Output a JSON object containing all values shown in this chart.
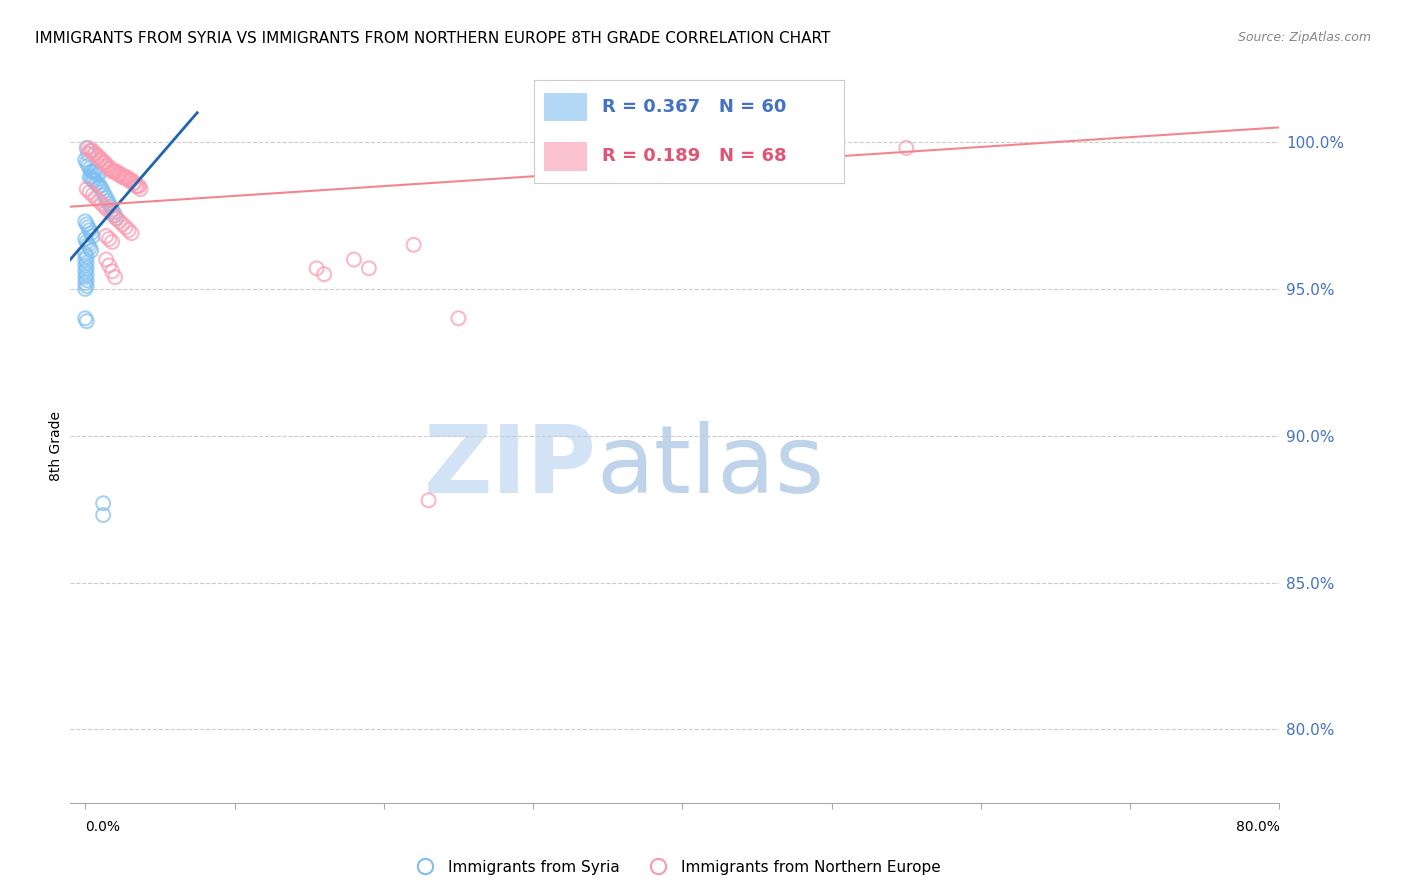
{
  "title": "IMMIGRANTS FROM SYRIA VS IMMIGRANTS FROM NORTHERN EUROPE 8TH GRADE CORRELATION CHART",
  "source": "Source: ZipAtlas.com",
  "ylabel": "8th Grade",
  "ytick_labels": [
    "100.0%",
    "95.0%",
    "90.0%",
    "85.0%",
    "80.0%"
  ],
  "ytick_values": [
    1.0,
    0.95,
    0.9,
    0.85,
    0.8
  ],
  "xtick_positions": [
    0.0,
    0.1,
    0.2,
    0.3,
    0.4,
    0.5,
    0.6,
    0.7,
    0.8
  ],
  "xlim": [
    -0.01,
    0.8
  ],
  "ylim": [
    0.775,
    1.018
  ],
  "syria_color": "#7fbfef",
  "northern_europe_color": "#f99ab0",
  "syria_line_color": "#2166ac",
  "northern_europe_line_color": "#f4858e",
  "legend_box_color": "#7fbfef",
  "legend_box_color2": "#f99ab0",
  "legend_text_color1": "#4472c4",
  "legend_text_color2": "#e05575",
  "right_tick_color": "#4472c4",
  "background_color": "#ffffff",
  "grid_color": "#cccccc",
  "syria_scatter": [
    [
      0.001,
      0.998
    ],
    [
      0.002,
      0.996
    ],
    [
      0.0,
      0.994
    ],
    [
      0.001,
      0.993
    ],
    [
      0.002,
      0.992
    ],
    [
      0.003,
      0.991
    ],
    [
      0.004,
      0.99
    ],
    [
      0.005,
      0.99
    ],
    [
      0.006,
      0.99
    ],
    [
      0.007,
      0.99
    ],
    [
      0.008,
      0.989
    ],
    [
      0.009,
      0.989
    ],
    [
      0.003,
      0.988
    ],
    [
      0.004,
      0.988
    ],
    [
      0.005,
      0.987
    ],
    [
      0.006,
      0.987
    ],
    [
      0.007,
      0.986
    ],
    [
      0.008,
      0.986
    ],
    [
      0.009,
      0.985
    ],
    [
      0.01,
      0.985
    ],
    [
      0.011,
      0.984
    ],
    [
      0.012,
      0.983
    ],
    [
      0.013,
      0.982
    ],
    [
      0.014,
      0.981
    ],
    [
      0.015,
      0.98
    ],
    [
      0.016,
      0.979
    ],
    [
      0.017,
      0.978
    ],
    [
      0.018,
      0.977
    ],
    [
      0.019,
      0.976
    ],
    [
      0.02,
      0.975
    ],
    [
      0.021,
      0.974
    ],
    [
      0.0,
      0.973
    ],
    [
      0.001,
      0.972
    ],
    [
      0.002,
      0.971
    ],
    [
      0.003,
      0.97
    ],
    [
      0.004,
      0.969
    ],
    [
      0.005,
      0.968
    ],
    [
      0.0,
      0.967
    ],
    [
      0.001,
      0.966
    ],
    [
      0.002,
      0.965
    ],
    [
      0.003,
      0.964
    ],
    [
      0.004,
      0.963
    ],
    [
      0.0,
      0.962
    ],
    [
      0.001,
      0.961
    ],
    [
      0.0,
      0.96
    ],
    [
      0.001,
      0.959
    ],
    [
      0.0,
      0.958
    ],
    [
      0.001,
      0.957
    ],
    [
      0.0,
      0.956
    ],
    [
      0.001,
      0.955
    ],
    [
      0.0,
      0.954
    ],
    [
      0.001,
      0.953
    ],
    [
      0.0,
      0.952
    ],
    [
      0.001,
      0.951
    ],
    [
      0.0,
      0.95
    ],
    [
      0.0,
      0.94
    ],
    [
      0.001,
      0.939
    ],
    [
      0.012,
      0.877
    ],
    [
      0.012,
      0.873
    ]
  ],
  "northern_europe_scatter": [
    [
      0.002,
      0.998
    ],
    [
      0.003,
      0.997
    ],
    [
      0.004,
      0.997
    ],
    [
      0.005,
      0.997
    ],
    [
      0.006,
      0.996
    ],
    [
      0.007,
      0.996
    ],
    [
      0.008,
      0.995
    ],
    [
      0.009,
      0.995
    ],
    [
      0.01,
      0.994
    ],
    [
      0.011,
      0.994
    ],
    [
      0.012,
      0.993
    ],
    [
      0.013,
      0.993
    ],
    [
      0.014,
      0.992
    ],
    [
      0.015,
      0.992
    ],
    [
      0.016,
      0.991
    ],
    [
      0.017,
      0.991
    ],
    [
      0.018,
      0.99
    ],
    [
      0.019,
      0.99
    ],
    [
      0.02,
      0.99
    ],
    [
      0.021,
      0.99
    ],
    [
      0.022,
      0.989
    ],
    [
      0.023,
      0.989
    ],
    [
      0.024,
      0.989
    ],
    [
      0.025,
      0.988
    ],
    [
      0.026,
      0.988
    ],
    [
      0.027,
      0.988
    ],
    [
      0.028,
      0.988
    ],
    [
      0.029,
      0.987
    ],
    [
      0.03,
      0.987
    ],
    [
      0.031,
      0.987
    ],
    [
      0.032,
      0.986
    ],
    [
      0.033,
      0.986
    ],
    [
      0.034,
      0.985
    ],
    [
      0.035,
      0.985
    ],
    [
      0.036,
      0.985
    ],
    [
      0.037,
      0.984
    ],
    [
      0.001,
      0.984
    ],
    [
      0.003,
      0.983
    ],
    [
      0.005,
      0.982
    ],
    [
      0.007,
      0.981
    ],
    [
      0.009,
      0.98
    ],
    [
      0.011,
      0.979
    ],
    [
      0.013,
      0.978
    ],
    [
      0.015,
      0.977
    ],
    [
      0.017,
      0.976
    ],
    [
      0.019,
      0.975
    ],
    [
      0.021,
      0.974
    ],
    [
      0.023,
      0.973
    ],
    [
      0.025,
      0.972
    ],
    [
      0.027,
      0.971
    ],
    [
      0.029,
      0.97
    ],
    [
      0.031,
      0.969
    ],
    [
      0.014,
      0.968
    ],
    [
      0.016,
      0.967
    ],
    [
      0.018,
      0.966
    ],
    [
      0.014,
      0.96
    ],
    [
      0.016,
      0.958
    ],
    [
      0.018,
      0.956
    ],
    [
      0.02,
      0.954
    ],
    [
      0.22,
      0.965
    ],
    [
      0.18,
      0.96
    ],
    [
      0.155,
      0.957
    ],
    [
      0.16,
      0.955
    ],
    [
      0.19,
      0.957
    ],
    [
      0.55,
      0.998
    ],
    [
      0.25,
      0.94
    ],
    [
      0.23,
      0.878
    ]
  ],
  "syria_line": {
    "x0": -0.01,
    "y0": 0.96,
    "x1": 0.075,
    "y1": 1.01
  },
  "northern_europe_line": {
    "x0": -0.01,
    "y0": 0.978,
    "x1": 0.8,
    "y1": 1.005
  },
  "watermark_zip": "ZIP",
  "watermark_atlas": "atlas",
  "watermark_color_zip": "#cde0f4",
  "watermark_color_atlas": "#b8cfe8"
}
